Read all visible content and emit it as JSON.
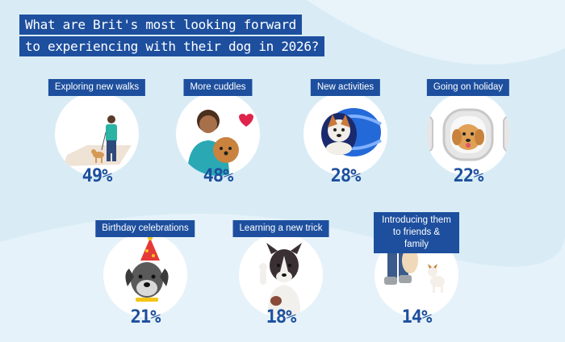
{
  "title_lines": [
    "What are Brit's most looking forward",
    "to experiencing with their dog in 2026?"
  ],
  "colors": {
    "accent": "#1d4f9e",
    "background": "#d9ecf6"
  },
  "chart_data": {
    "type": "table",
    "title": "What are Brit's most looking forward to experiencing with their dog in 2026?",
    "categories": [
      "Exploring new walks",
      "More cuddles",
      "New activities",
      "Going on holiday",
      "Birthday celebrations",
      "Learning a new trick",
      "Introducing them to friends & family"
    ],
    "values": [
      49,
      48,
      28,
      22,
      21,
      18,
      14
    ],
    "value_labels": [
      "49%",
      "48%",
      "28%",
      "22%",
      "21%",
      "18%",
      "14%"
    ],
    "icons": [
      "walking-dog-icon",
      "cuddle-dog-icon",
      "tunnel-dog-icon",
      "holiday-dog-icon",
      "party-hat-dog-icon",
      "trick-dog-icon",
      "friends-dog-icon"
    ]
  }
}
